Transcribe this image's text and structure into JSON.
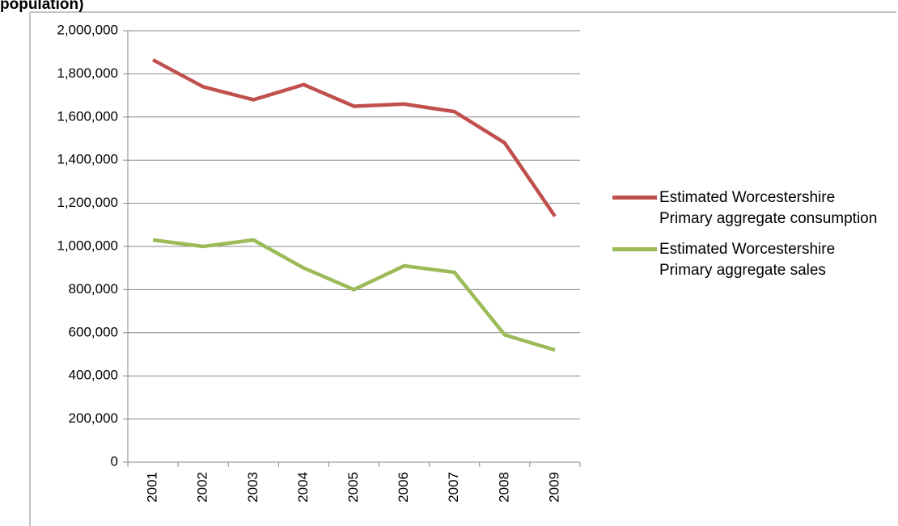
{
  "chart_data": {
    "type": "line",
    "title": "population)",
    "categories": [
      "2001",
      "2002",
      "2003",
      "2004",
      "2005",
      "2006",
      "2007",
      "2008",
      "2009"
    ],
    "series": [
      {
        "name": "Estimated Worcestershire Primary aggregate consumption",
        "color": "#c0504d",
        "values": [
          1865000,
          1740000,
          1680000,
          1750000,
          1650000,
          1660000,
          1625000,
          1480000,
          1140000
        ]
      },
      {
        "name": "Estimated Worcestershire Primary aggregate sales",
        "color": "#9bbb59",
        "values": [
          1030000,
          1000000,
          1030000,
          900000,
          800000,
          910000,
          880000,
          590000,
          520000
        ]
      }
    ],
    "ylim": [
      0,
      2000000
    ],
    "yticks": [
      0,
      {
        "value": 200000,
        "label": "200,000"
      },
      {
        "value": 400000,
        "label": "400,000"
      },
      {
        "value": 600000,
        "label": "600,000"
      },
      {
        "value": 800000,
        "label": "800,000"
      },
      {
        "value": 1000000,
        "label": "1,000,000"
      },
      {
        "value": 1200000,
        "label": "1,200,000"
      },
      {
        "value": 1400000,
        "label": "1,400,000"
      },
      {
        "value": 1600000,
        "label": "1,600,000"
      },
      {
        "value": 1800000,
        "label": "1,800,000"
      },
      {
        "value": 2000000,
        "label": "2,000,000"
      }
    ],
    "grid": true,
    "legend": "right"
  }
}
